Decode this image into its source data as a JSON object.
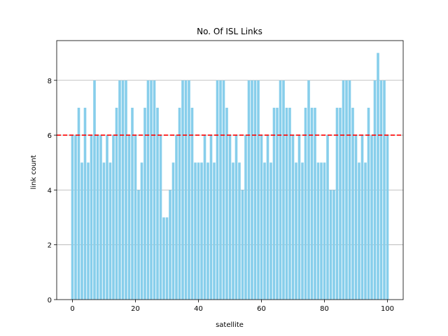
{
  "chart_data": {
    "type": "bar",
    "title": "No. Of ISL Links",
    "xlabel": "satellite",
    "ylabel": "link count",
    "xlim": [
      -5,
      105
    ],
    "ylim": [
      0,
      9.45
    ],
    "xticks": [
      0,
      20,
      40,
      60,
      80,
      100
    ],
    "yticks": [
      0,
      2,
      4,
      6,
      8
    ],
    "grid": "horizontal",
    "bar_color": "#87CEEB",
    "reference_line": {
      "y": 6,
      "color": "#ff0000",
      "style": "dashed"
    },
    "x": [
      0,
      1,
      2,
      3,
      4,
      5,
      6,
      7,
      8,
      9,
      10,
      11,
      12,
      13,
      14,
      15,
      16,
      17,
      18,
      19,
      20,
      21,
      22,
      23,
      24,
      25,
      26,
      27,
      28,
      29,
      30,
      31,
      32,
      33,
      34,
      35,
      36,
      37,
      38,
      39,
      40,
      41,
      42,
      43,
      44,
      45,
      46,
      47,
      48,
      49,
      50,
      51,
      52,
      53,
      54,
      55,
      56,
      57,
      58,
      59,
      60,
      61,
      62,
      63,
      64,
      65,
      66,
      67,
      68,
      69,
      70,
      71,
      72,
      73,
      74,
      75,
      76,
      77,
      78,
      79,
      80,
      81,
      82,
      83,
      84,
      85,
      86,
      87,
      88,
      89,
      90,
      91,
      92,
      93,
      94,
      95,
      96,
      97,
      98,
      99,
      100
    ],
    "values": [
      6,
      6,
      7,
      5,
      7,
      5,
      6,
      8,
      6,
      6,
      5,
      6,
      5,
      6,
      7,
      8,
      8,
      8,
      6,
      7,
      6,
      4,
      5,
      7,
      8,
      8,
      8,
      7,
      6,
      3,
      3,
      4,
      5,
      6,
      7,
      8,
      8,
      8,
      7,
      5,
      5,
      5,
      6,
      5,
      6,
      5,
      8,
      8,
      8,
      7,
      6,
      5,
      6,
      5,
      4,
      6,
      8,
      8,
      8,
      8,
      6,
      5,
      6,
      5,
      7,
      7,
      8,
      8,
      7,
      7,
      6,
      5,
      6,
      5,
      7,
      8,
      7,
      7,
      5,
      5,
      5,
      6,
      4,
      4,
      7,
      7,
      8,
      8,
      8,
      7,
      6,
      5,
      6,
      5,
      7,
      6,
      8,
      9,
      8,
      8,
      6
    ]
  }
}
